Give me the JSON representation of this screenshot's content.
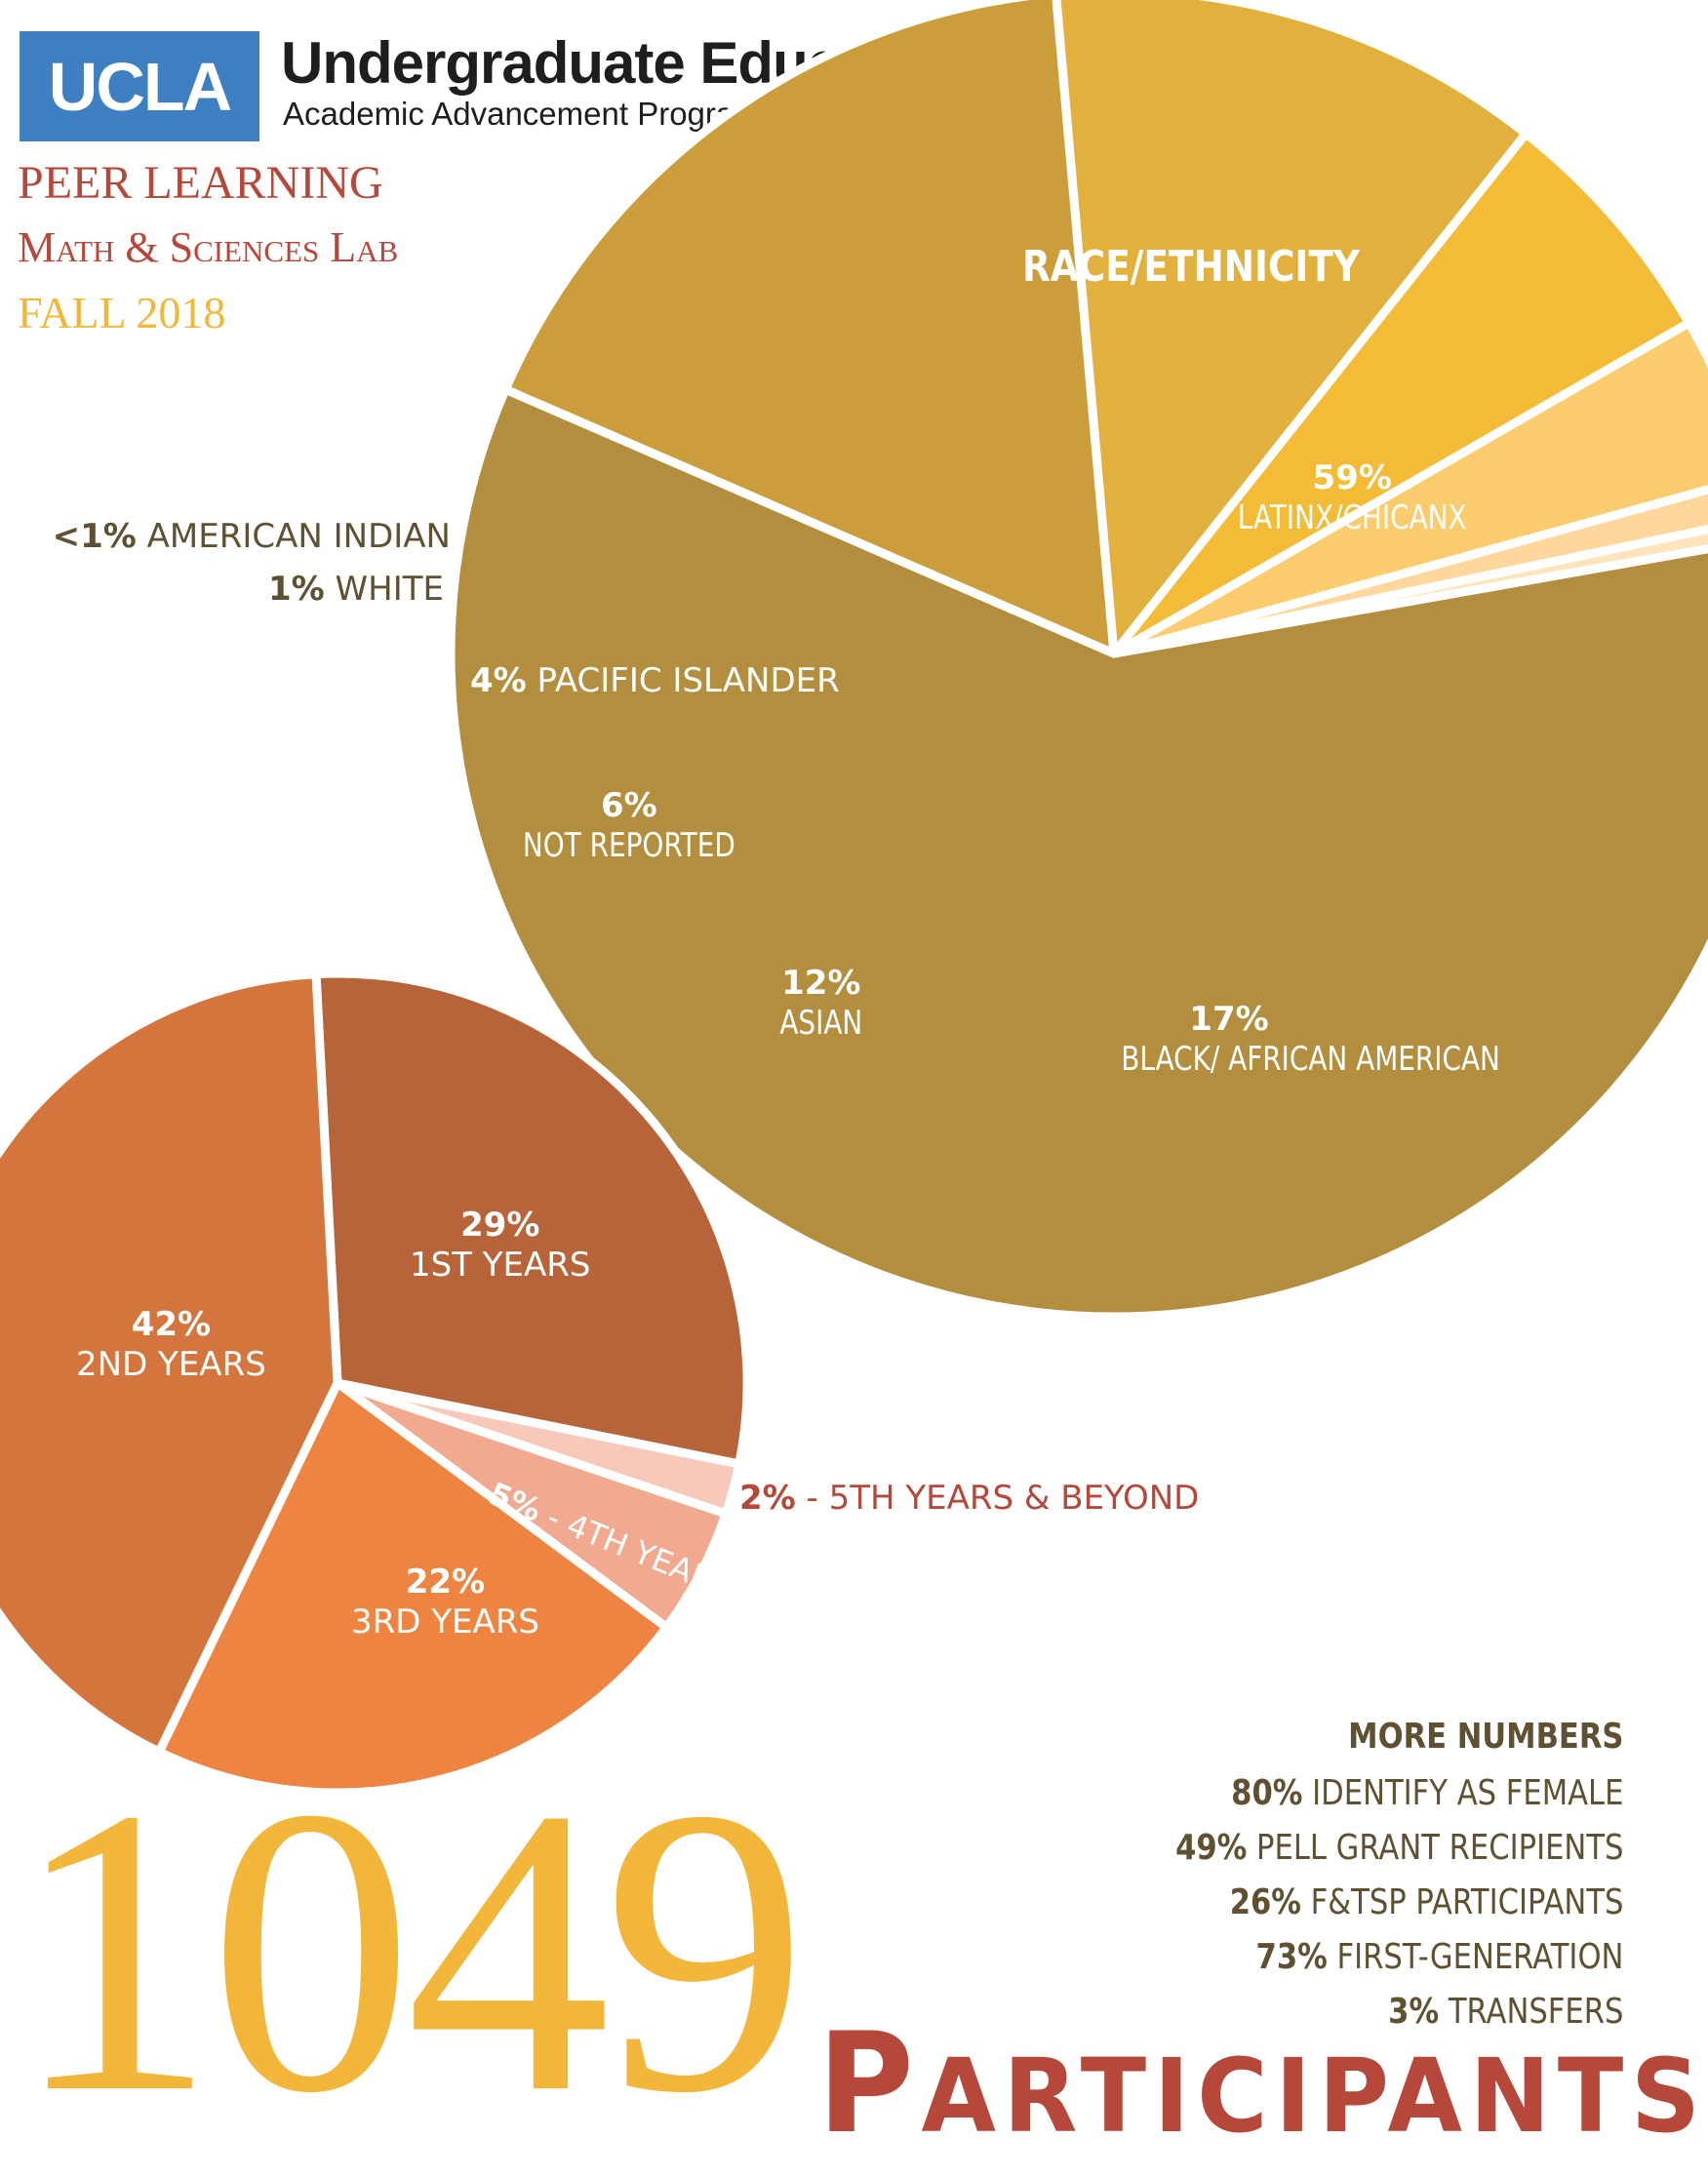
{
  "header": {
    "logo": "UCLA",
    "org_title": "Undergraduate Education",
    "org_subtitle": "Academic Advancement Program",
    "program": "PEER LEARNING",
    "lab": "Math & Sciences Lab",
    "term": "FALL 2018"
  },
  "colors": {
    "ucla_blue": "#3d7fc1",
    "accent_red": "#b5483a",
    "accent_gold": "#f2b73a"
  },
  "chart_data": [
    {
      "type": "pie",
      "title": "RACE/ETHNICITY",
      "slices": [
        {
          "pct": "59%",
          "label": "LATINX/CHICANX",
          "value": 59,
          "color": "#b38e3f"
        },
        {
          "pct": "17%",
          "label": "BLACK/ AFRICAN AMERICAN",
          "value": 17,
          "color": "#cc9e3b"
        },
        {
          "pct": "12%",
          "label": "ASIAN",
          "value": 12,
          "color": "#e2b03c"
        },
        {
          "pct": "6%",
          "label": "NOT REPORTED",
          "value": 6,
          "color": "#f4bb36"
        },
        {
          "pct": "4%",
          "label": "PACIFIC ISLANDER",
          "value": 4,
          "color": "#fbcc6d"
        },
        {
          "pct": "1%",
          "label": "WHITE",
          "value": 1,
          "color": "#fdd79b"
        },
        {
          "pct": "<1%",
          "label": "AMERICAN INDIAN",
          "value": 0.5,
          "color": "#fde4bb"
        }
      ]
    },
    {
      "type": "pie",
      "title": "",
      "slices": [
        {
          "pct": "29%",
          "label": "1ST YEARS",
          "value": 29,
          "color": "#b8643a"
        },
        {
          "pct": "2%",
          "label": "- 5TH YEARS & BEYOND",
          "value": 2,
          "color": "#f7c9bb"
        },
        {
          "pct": "5%",
          "label": "- 4TH YEARS",
          "value": 5,
          "color": "#f1a98f"
        },
        {
          "pct": "22%",
          "label": "3RD YEARS",
          "value": 22,
          "color": "#ed8442"
        },
        {
          "pct": "42%",
          "label": "2ND YEARS",
          "value": 42,
          "color": "#d5753e"
        }
      ]
    }
  ],
  "more_numbers": {
    "title": "MORE NUMBERS",
    "items": [
      {
        "pct": "80%",
        "label": "IDENTIFY AS FEMALE"
      },
      {
        "pct": "49%",
        "label": "PELL GRANT RECIPIENTS"
      },
      {
        "pct": "26%",
        "label": "F&TSP PARTICIPANTS"
      },
      {
        "pct": "73%",
        "label": "FIRST-GENERATION"
      },
      {
        "pct": "3%",
        "label": "TRANSFERS"
      }
    ]
  },
  "total": {
    "count": "1049",
    "label_first": "P",
    "label_rest": "ARTICIPANTS"
  }
}
